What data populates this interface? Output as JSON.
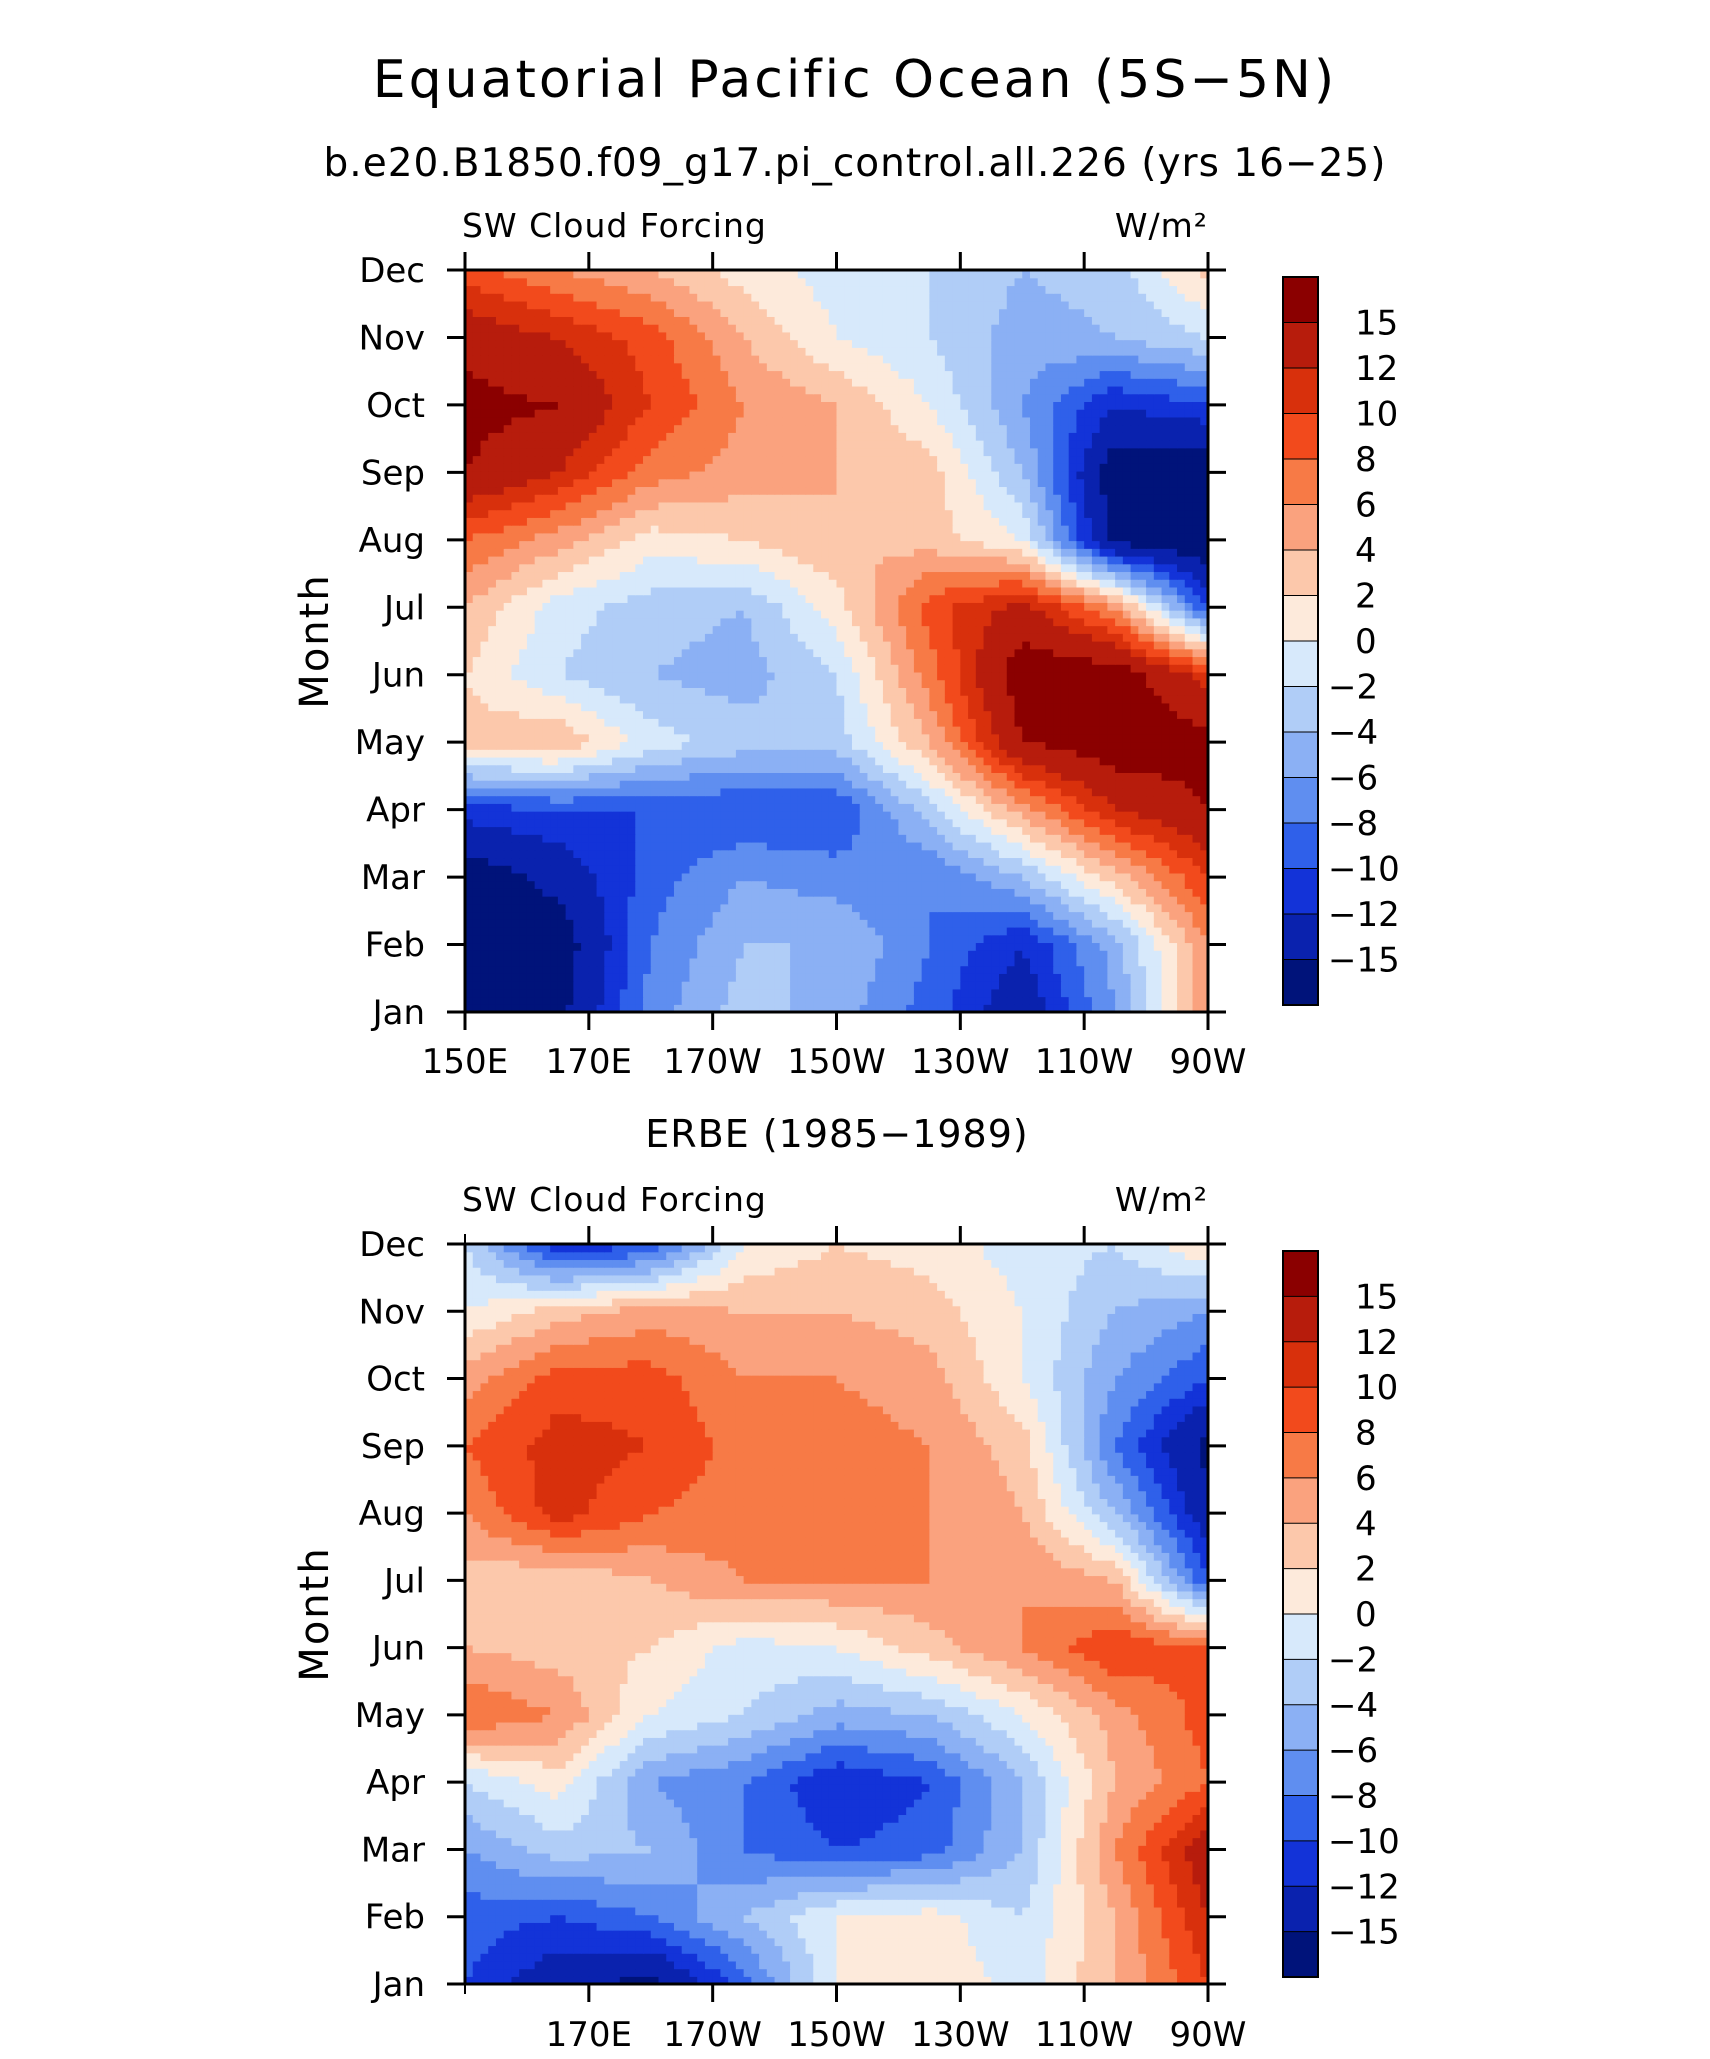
{
  "figure_title": "Equatorial Pacific Ocean (5S−5N)",
  "figure_subtitle": "b.e20.B1850.f09_g17.pi_control.all.226 (yrs 16−25)",
  "panel2_title": "ERBE (1985−1989)",
  "colorbar": {
    "labels": [
      "15",
      "12",
      "10",
      "8",
      "6",
      "4",
      "2",
      "0",
      "−2",
      "−4",
      "−6",
      "−8",
      "−10",
      "−12",
      "−15"
    ],
    "colors_top_to_bottom": [
      "#8b0000",
      "#b71c0c",
      "#d8300c",
      "#f24a1c",
      "#f77a46",
      "#faa27e",
      "#fcc8ab",
      "#fdeadb",
      "#d7e9fb",
      "#b0cdf7",
      "#8bb0f4",
      "#5f8ef0",
      "#2f60ea",
      "#1333d8",
      "#0a22ae",
      "#00137a"
    ]
  },
  "chart_data": [
    {
      "type": "heatmap",
      "title": "b.e20.B1850.f09_g17.pi_control.all.226 (yrs 16−25)",
      "left_label": "SW Cloud Forcing",
      "right_label": "W/m²",
      "ylabel": "Month",
      "x_tick_labels": [
        "150E",
        "170E",
        "170W",
        "150W",
        "130W",
        "110W",
        "90W"
      ],
      "y_tick_labels": [
        "Jan",
        "Feb",
        "Mar",
        "Apr",
        "May",
        "Jun",
        "Jul",
        "Aug",
        "Sep",
        "Oct",
        "Nov",
        "Dec"
      ],
      "xlim": [
        150,
        270
      ],
      "x_units": "degrees longitude east",
      "levels": [
        -15,
        -12,
        -10,
        -8,
        -6,
        -4,
        -2,
        0,
        2,
        4,
        6,
        8,
        10,
        12,
        15
      ],
      "x": [
        150,
        165,
        180,
        195,
        210,
        225,
        240,
        255,
        270
      ],
      "y": [
        "Jan",
        "Feb",
        "Mar",
        "Apr",
        "May",
        "Jun",
        "Jul",
        "Aug",
        "Sep",
        "Oct",
        "Nov",
        "Dec"
      ],
      "z": [
        [
          -18,
          -16,
          -7,
          -3,
          -5,
          -9,
          -14,
          -6,
          6
        ],
        [
          -18,
          -17,
          -8,
          -4,
          -4,
          -8,
          -12,
          -5,
          6
        ],
        [
          -17,
          -14,
          -9,
          -6,
          -7,
          -8,
          -4,
          3,
          10
        ],
        [
          -11,
          -10,
          -10,
          -10,
          -10,
          -3,
          5,
          12,
          15
        ],
        [
          3,
          4,
          -1,
          -3,
          -3,
          4,
          15,
          17,
          16
        ],
        [
          2,
          -2,
          -4,
          -5,
          -2,
          7,
          17,
          17,
          11
        ],
        [
          4,
          -1,
          -3,
          -4,
          1,
          9,
          13,
          6,
          -10
        ],
        [
          8,
          5,
          1,
          2,
          4,
          3,
          0,
          -16,
          -18
        ],
        [
          15,
          12,
          7,
          5,
          4,
          3,
          -4,
          -17,
          -18
        ],
        [
          16,
          15,
          10,
          6,
          4,
          0,
          -6,
          -12,
          -10
        ],
        [
          14,
          12,
          9,
          4,
          0,
          -2,
          -5,
          -4,
          -2
        ],
        [
          9,
          6,
          4,
          1,
          -1,
          -2,
          -4,
          -3,
          3
        ]
      ]
    },
    {
      "type": "heatmap",
      "title": "ERBE (1985−1989)",
      "left_label": "SW Cloud Forcing",
      "right_label": "W/m²",
      "ylabel": "Month",
      "x_tick_labels": [
        "170E",
        "170W",
        "150W",
        "130W",
        "110W",
        "90W"
      ],
      "y_tick_labels": [
        "Jan",
        "Feb",
        "Mar",
        "Apr",
        "May",
        "Jun",
        "Jul",
        "Aug",
        "Sep",
        "Oct",
        "Nov",
        "Dec"
      ],
      "xlim": [
        150,
        270
      ],
      "x_units": "degrees longitude east",
      "levels": [
        -15,
        -12,
        -10,
        -8,
        -6,
        -4,
        -2,
        0,
        2,
        4,
        6,
        8,
        10,
        12,
        15
      ],
      "x": [
        150,
        165,
        180,
        195,
        210,
        225,
        240,
        255,
        270
      ],
      "y": [
        "Jan",
        "Feb",
        "Mar",
        "Apr",
        "May",
        "Jun",
        "Jul",
        "Aug",
        "Sep",
        "Oct",
        "Nov",
        "Dec"
      ],
      "z": [
        [
          -10,
          -14,
          -16,
          -9,
          0,
          2,
          -1,
          4,
          10
        ],
        [
          -9,
          -10,
          -8,
          -4,
          0,
          1,
          -2,
          4,
          12
        ],
        [
          -6,
          -3,
          -4,
          -8,
          -10,
          -9,
          -4,
          6,
          14
        ],
        [
          -2,
          1,
          -6,
          -8,
          -12,
          -10,
          -4,
          4,
          8
        ],
        [
          8,
          6,
          0,
          -2,
          -5,
          -4,
          0,
          5,
          9
        ],
        [
          4,
          3,
          2,
          -1,
          0,
          3,
          6,
          10,
          8
        ],
        [
          3,
          2,
          4,
          6,
          6,
          6,
          6,
          4,
          -10
        ],
        [
          6,
          11,
          8,
          7,
          7,
          6,
          4,
          -4,
          -14
        ],
        [
          8,
          11,
          10,
          7,
          7,
          6,
          3,
          -8,
          -16
        ],
        [
          5,
          9,
          9,
          6,
          6,
          5,
          0,
          -6,
          -10
        ],
        [
          0,
          3,
          5,
          4,
          4,
          3,
          0,
          -4,
          -6
        ],
        [
          -2,
          -12,
          -10,
          0,
          2,
          1,
          -1,
          -2,
          2
        ]
      ]
    }
  ]
}
